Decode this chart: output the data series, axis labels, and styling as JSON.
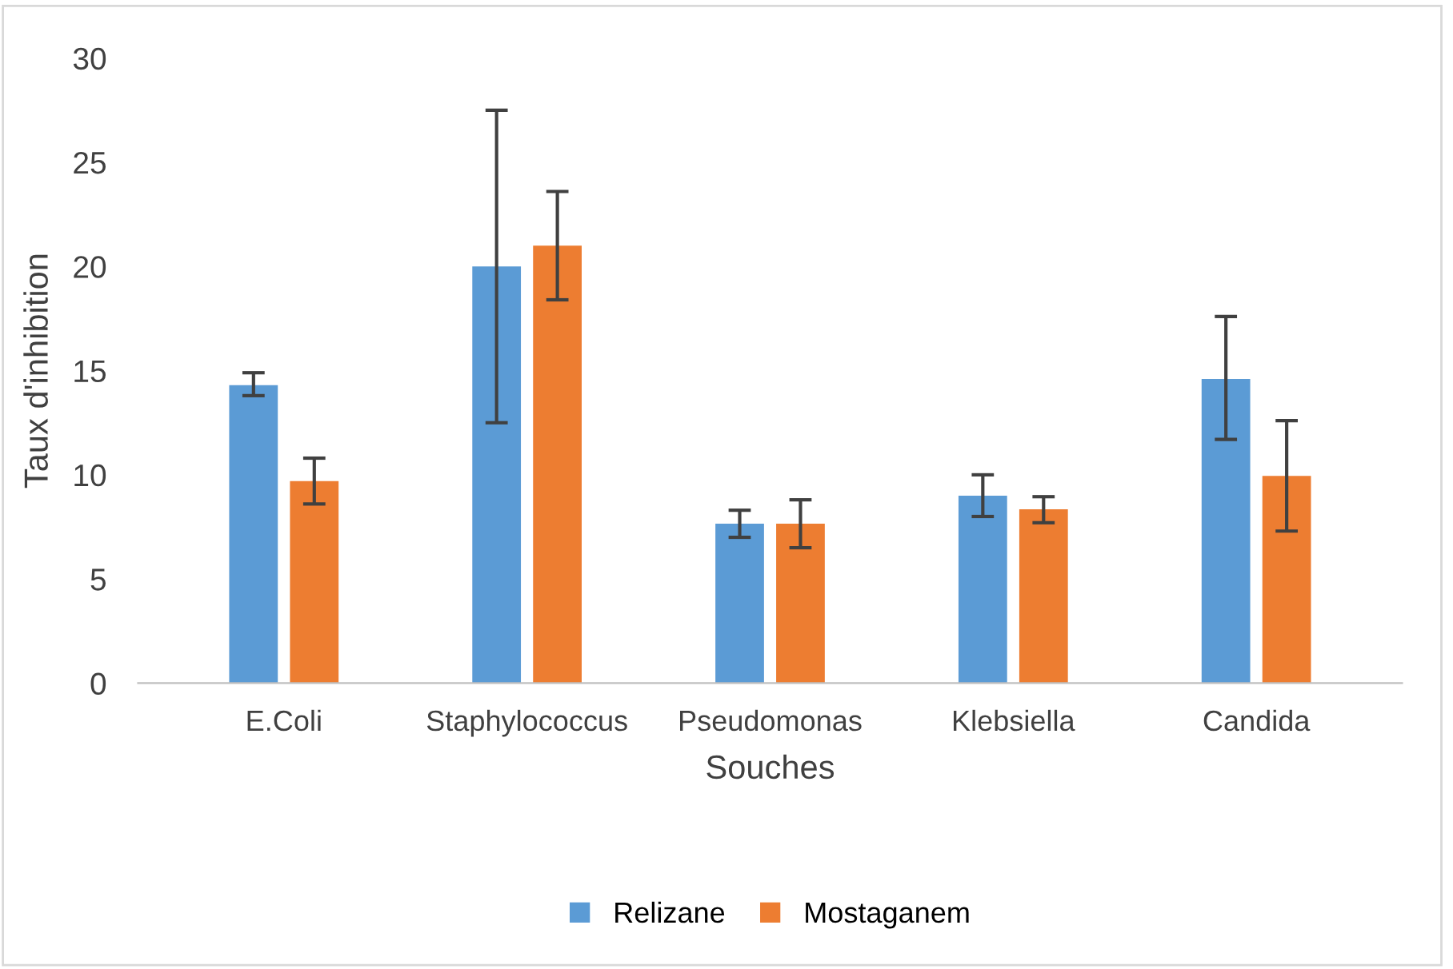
{
  "chart_data": {
    "type": "bar",
    "xlabel": "Souches",
    "ylabel": "Taux d'inhibition",
    "categories": [
      "E.Coli",
      "Staphylococcus",
      "Pseudomonas",
      "Klebsiella",
      "Candida"
    ],
    "series": [
      {
        "name": "Relizane",
        "color": "#5b9bd5",
        "values": [
          14.3,
          20.0,
          7.65,
          9.0,
          14.6
        ],
        "errors": [
          [
            13.8,
            14.9
          ],
          [
            12.5,
            27.5
          ],
          [
            7.0,
            8.3
          ],
          [
            8.0,
            10.0
          ],
          [
            11.7,
            17.6
          ]
        ]
      },
      {
        "name": "Mostaganem",
        "color": "#ed7d31",
        "values": [
          9.7,
          21.0,
          7.65,
          8.35,
          9.95
        ],
        "errors": [
          [
            8.6,
            10.8
          ],
          [
            18.4,
            23.6
          ],
          [
            6.5,
            8.8
          ],
          [
            7.7,
            8.95
          ],
          [
            7.3,
            12.6
          ]
        ]
      }
    ],
    "ylim": [
      0,
      30
    ],
    "yticks": [
      0,
      5,
      10,
      15,
      20,
      25,
      30
    ],
    "grid": false,
    "legend": "bottom"
  }
}
